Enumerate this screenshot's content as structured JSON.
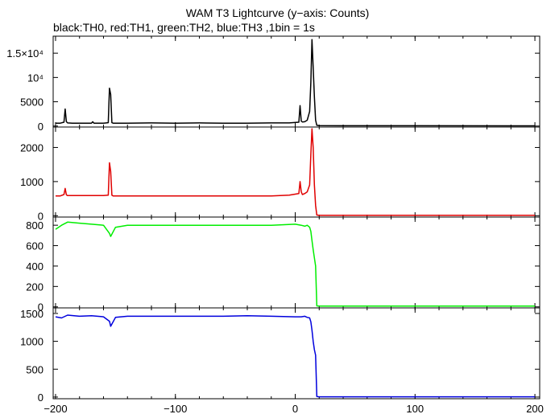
{
  "chart_data": {
    "type": "line",
    "title": "WAM T3 Lightcurve (y−axis: Counts)",
    "subtitle": "black:TH0, red:TH1, green:TH2, blue:TH3 ,1bin = 1s",
    "x_ticks": [
      "−200",
      "−100",
      "0",
      "100",
      "200"
    ],
    "x_tick_values": [
      -200,
      -100,
      0,
      100,
      200
    ],
    "xlim": [
      -202,
      204
    ],
    "panels": [
      {
        "name": "TH0",
        "color": "#000000",
        "ylim": [
          -200,
          18500
        ],
        "y_ticks": [
          "0",
          "5000",
          "10⁴",
          "1.5×10⁴"
        ],
        "y_tick_values": [
          0,
          5000,
          10000,
          15000
        ],
        "x": [
          -200,
          -196,
          -193,
          -192,
          -191,
          -190,
          -186,
          -175,
          -170,
          -169,
          -168,
          -160,
          -156,
          -155,
          -154,
          -153,
          -152,
          -140,
          -120,
          -100,
          -80,
          -60,
          -40,
          -20,
          -5,
          3,
          4,
          5,
          6,
          8,
          10,
          12,
          13,
          14,
          15,
          16,
          17,
          18,
          20,
          40,
          100,
          200
        ],
        "y": [
          600,
          600,
          800,
          3500,
          900,
          650,
          600,
          600,
          600,
          900,
          600,
          600,
          700,
          7800,
          6500,
          700,
          600,
          600,
          650,
          600,
          650,
          600,
          600,
          650,
          650,
          800,
          4200,
          1000,
          850,
          900,
          1200,
          3000,
          9000,
          17800,
          12000,
          6000,
          1200,
          150,
          80,
          60,
          60,
          50
        ]
      },
      {
        "name": "TH1",
        "color": "#e00000",
        "ylim": [
          -40,
          2600
        ],
        "y_ticks": [
          "0",
          "1000",
          "2000"
        ],
        "y_tick_values": [
          0,
          1000,
          2000
        ],
        "x": [
          -200,
          -196,
          -193,
          -192,
          -191,
          -190,
          -186,
          -170,
          -160,
          -156,
          -155,
          -154,
          -153,
          -152,
          -140,
          -120,
          -100,
          -80,
          -60,
          -40,
          -20,
          -5,
          3,
          4,
          5,
          6,
          8,
          10,
          12,
          13,
          14,
          15,
          16,
          17,
          18,
          20,
          40,
          100,
          200
        ],
        "y": [
          580,
          580,
          620,
          800,
          610,
          590,
          590,
          590,
          590,
          600,
          1550,
          1300,
          600,
          580,
          580,
          580,
          580,
          580,
          580,
          580,
          580,
          600,
          650,
          1000,
          700,
          620,
          650,
          700,
          900,
          1800,
          2550,
          2000,
          900,
          300,
          20,
          10,
          10,
          10,
          10
        ]
      },
      {
        "name": "TH2",
        "color": "#00ee00",
        "ylim": [
          -10,
          880
        ],
        "y_ticks": [
          "0",
          "200",
          "400",
          "600",
          "800"
        ],
        "y_tick_values": [
          0,
          200,
          400,
          600,
          800
        ],
        "x": [
          -200,
          -195,
          -190,
          -180,
          -170,
          -160,
          -155,
          -154,
          -150,
          -140,
          -120,
          -100,
          -80,
          -60,
          -40,
          -20,
          0,
          5,
          8,
          10,
          12,
          13,
          14,
          15,
          16,
          17,
          18,
          20,
          40,
          100,
          200
        ],
        "y": [
          760,
          800,
          830,
          820,
          810,
          800,
          720,
          690,
          780,
          800,
          800,
          800,
          800,
          800,
          800,
          800,
          810,
          800,
          790,
          800,
          780,
          740,
          650,
          560,
          480,
          400,
          10,
          8,
          8,
          8,
          8
        ]
      },
      {
        "name": "TH3",
        "color": "#0000dd",
        "ylim": [
          -30,
          1600
        ],
        "y_ticks": [
          "0",
          "500",
          "1000",
          "1500"
        ],
        "y_tick_values": [
          0,
          500,
          1000,
          1500
        ],
        "x": [
          -200,
          -195,
          -190,
          -180,
          -170,
          -160,
          -155,
          -154,
          -150,
          -140,
          -120,
          -100,
          -80,
          -60,
          -40,
          -20,
          0,
          5,
          8,
          10,
          12,
          13,
          14,
          15,
          16,
          17,
          18,
          20,
          40,
          100,
          200
        ],
        "y": [
          1440,
          1420,
          1470,
          1450,
          1460,
          1440,
          1360,
          1270,
          1430,
          1450,
          1450,
          1450,
          1450,
          1450,
          1460,
          1450,
          1440,
          1440,
          1450,
          1430,
          1420,
          1350,
          1200,
          1000,
          850,
          750,
          10,
          5,
          5,
          5,
          5
        ]
      }
    ]
  }
}
